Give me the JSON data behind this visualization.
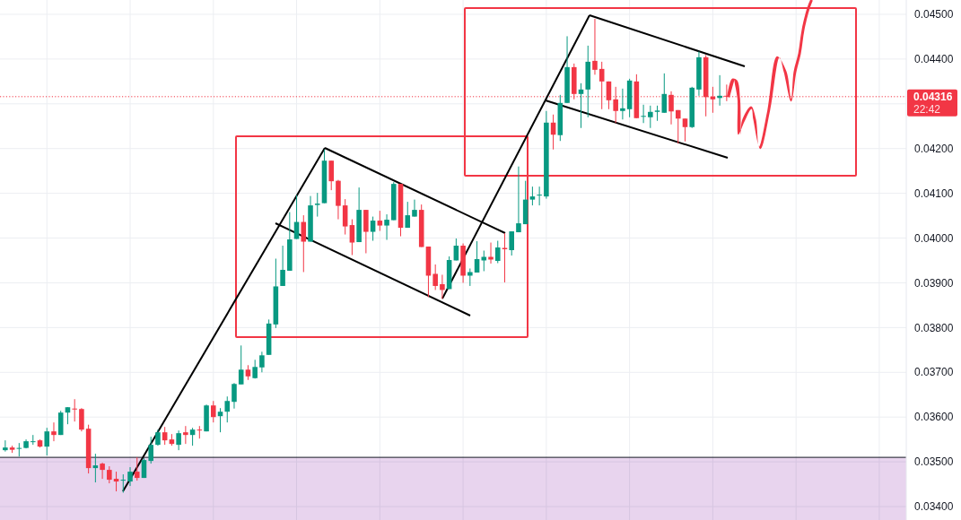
{
  "chart_data": {
    "type": "candlestick",
    "categories": [
      null,
      null,
      null,
      null,
      null,
      null,
      null,
      null,
      null,
      null,
      null,
      null,
      null,
      null,
      null,
      null,
      null,
      null,
      null,
      null,
      null,
      null,
      null,
      null,
      null,
      null,
      null,
      null,
      null,
      null,
      null,
      null,
      null,
      null,
      null,
      null,
      null,
      null,
      null,
      null,
      null,
      null,
      null,
      null,
      null,
      null,
      null,
      null,
      null,
      null,
      null,
      null,
      null,
      null,
      null,
      null,
      null,
      null,
      null,
      null,
      null,
      null,
      null,
      null,
      null,
      null,
      null,
      null,
      null,
      null,
      null,
      null,
      null,
      null,
      null,
      null,
      null,
      null,
      null,
      null,
      null,
      null,
      null,
      null,
      null,
      null,
      null,
      null,
      null,
      null,
      null,
      null,
      null,
      null,
      null,
      null,
      null,
      null,
      null,
      null,
      null,
      null,
      null,
      null,
      null,
      null,
      null,
      null,
      null,
      null,
      null,
      null,
      null,
      null,
      null,
      null,
      null,
      null,
      null,
      null,
      null,
      null,
      null,
      null,
      null,
      null,
      null,
      null,
      null,
      null
    ],
    "ohlc": [
      [
        0.03526,
        0.03548,
        0.03523,
        0.03532
      ],
      [
        0.03532,
        0.03536,
        0.0352,
        0.03527
      ],
      [
        0.03529,
        0.03542,
        0.03512,
        0.03531
      ],
      [
        0.03531,
        0.0355,
        0.0353,
        0.03546
      ],
      [
        0.03544,
        0.0356,
        0.03538,
        0.03546
      ],
      [
        0.03548,
        0.0355,
        0.03532,
        0.03534
      ],
      [
        0.03534,
        0.03576,
        0.03514,
        0.03568
      ],
      [
        0.03568,
        0.03588,
        0.03546,
        0.0356
      ],
      [
        0.0356,
        0.03614,
        0.0356,
        0.0361
      ],
      [
        0.0361,
        0.03622,
        0.03584,
        0.03622
      ],
      [
        0.03619,
        0.0364,
        0.0359,
        0.03618
      ],
      [
        0.03618,
        0.0362,
        0.03568,
        0.03572
      ],
      [
        0.03574,
        0.03583,
        0.03474,
        0.03486
      ],
      [
        0.03486,
        0.03518,
        0.03454,
        0.03492
      ],
      [
        0.03496,
        0.03498,
        0.03462,
        0.03482
      ],
      [
        0.03482,
        0.0349,
        0.03452,
        0.0346
      ],
      [
        0.03462,
        0.03478,
        0.03434,
        0.03456
      ],
      [
        0.03458,
        0.03472,
        0.03431,
        0.0346
      ],
      [
        0.03456,
        0.03488,
        0.03446,
        0.03478
      ],
      [
        0.03478,
        0.0351,
        0.03458,
        0.03464
      ],
      [
        0.03464,
        0.03508,
        0.03464,
        0.03504
      ],
      [
        0.03502,
        0.03556,
        0.03496,
        0.03538
      ],
      [
        0.03538,
        0.03572,
        0.03536,
        0.03566
      ],
      [
        0.03566,
        0.03578,
        0.03538,
        0.03548
      ],
      [
        0.0355,
        0.03562,
        0.03536,
        0.0354
      ],
      [
        0.03538,
        0.0357,
        0.03526,
        0.03564
      ],
      [
        0.03566,
        0.0358,
        0.0354,
        0.0356
      ],
      [
        0.0356,
        0.03576,
        0.03536,
        0.03572
      ],
      [
        0.03572,
        0.0358,
        0.03552,
        0.0357
      ],
      [
        0.03568,
        0.03628,
        0.03568,
        0.03626
      ],
      [
        0.03626,
        0.03636,
        0.03588,
        0.036
      ],
      [
        0.03602,
        0.0362,
        0.03566,
        0.03612
      ],
      [
        0.03612,
        0.03646,
        0.03588,
        0.03636
      ],
      [
        0.03634,
        0.03676,
        0.03619,
        0.03674
      ],
      [
        0.03673,
        0.0376,
        0.03673,
        0.03706
      ],
      [
        0.03706,
        0.03716,
        0.03683,
        0.03691
      ],
      [
        0.03687,
        0.03728,
        0.03686,
        0.03712
      ],
      [
        0.03711,
        0.03746,
        0.037,
        0.03738
      ],
      [
        0.03739,
        0.03818,
        0.03739,
        0.03809
      ],
      [
        0.03807,
        0.03954,
        0.03799,
        0.03892
      ],
      [
        0.03893,
        0.03983,
        0.03893,
        0.03929
      ],
      [
        0.03927,
        0.04058,
        0.03927,
        0.03997
      ],
      [
        0.03998,
        0.04096,
        0.03998,
        0.04036
      ],
      [
        0.04036,
        0.04051,
        0.03924,
        0.03992
      ],
      [
        0.03992,
        0.04094,
        0.03992,
        0.04073
      ],
      [
        0.04074,
        0.04101,
        0.04048,
        0.04077
      ],
      [
        0.04078,
        0.04198,
        0.04078,
        0.04173
      ],
      [
        0.04173,
        0.04173,
        0.04107,
        0.04127
      ],
      [
        0.04128,
        0.0413,
        0.04042,
        0.04072
      ],
      [
        0.04073,
        0.04087,
        0.04008,
        0.04026
      ],
      [
        0.04029,
        0.04042,
        0.03962,
        0.0399
      ],
      [
        0.03991,
        0.04113,
        0.03991,
        0.04063
      ],
      [
        0.04063,
        0.04063,
        0.03966,
        0.04014
      ],
      [
        0.04014,
        0.04048,
        0.03994,
        0.04039
      ],
      [
        0.04039,
        0.04061,
        0.04016,
        0.04028
      ],
      [
        0.04028,
        0.04053,
        0.03996,
        0.04041
      ],
      [
        0.0404,
        0.04125,
        0.0404,
        0.04121
      ],
      [
        0.04121,
        0.04121,
        0.04004,
        0.04023
      ],
      [
        0.04023,
        0.04081,
        0.04023,
        0.04051
      ],
      [
        0.04048,
        0.04086,
        0.04048,
        0.04063
      ],
      [
        0.04063,
        0.04075,
        0.0398,
        0.0398
      ],
      [
        0.03981,
        0.03981,
        0.03868,
        0.03916
      ],
      [
        0.0392,
        0.03941,
        0.03884,
        0.03893
      ],
      [
        0.03897,
        0.03918,
        0.03864,
        0.03884
      ],
      [
        0.03886,
        0.03959,
        0.03886,
        0.03951
      ],
      [
        0.0395,
        0.03999,
        0.0395,
        0.03983
      ],
      [
        0.03983,
        0.03988,
        0.039,
        0.03916
      ],
      [
        0.03916,
        0.03932,
        0.03893,
        0.03924
      ],
      [
        0.03923,
        0.03993,
        0.03923,
        0.03953
      ],
      [
        0.0395,
        0.03972,
        0.03926,
        0.03958
      ],
      [
        0.03958,
        0.0399,
        0.03943,
        0.03952
      ],
      [
        0.03949,
        0.03994,
        0.03944,
        0.03979
      ],
      [
        0.03978,
        0.04011,
        0.03901,
        0.03975
      ],
      [
        0.03973,
        0.04015,
        0.03961,
        0.04015
      ],
      [
        0.04013,
        0.0416,
        0.04013,
        0.04033
      ],
      [
        0.04031,
        0.04128,
        0.04031,
        0.04086
      ],
      [
        0.04086,
        0.04115,
        0.04073,
        0.04093
      ],
      [
        0.04095,
        0.04115,
        0.04073,
        0.04097
      ],
      [
        0.04093,
        0.04284,
        0.04088,
        0.04258
      ],
      [
        0.04258,
        0.04276,
        0.04198,
        0.04231
      ],
      [
        0.0423,
        0.0432,
        0.04217,
        0.04302
      ],
      [
        0.04302,
        0.04451,
        0.04302,
        0.04382
      ],
      [
        0.04382,
        0.0439,
        0.0431,
        0.04322
      ],
      [
        0.04322,
        0.04346,
        0.04246,
        0.04332
      ],
      [
        0.04332,
        0.0443,
        0.0427,
        0.04394
      ],
      [
        0.04396,
        0.0449,
        0.04365,
        0.04376
      ],
      [
        0.04378,
        0.04394,
        0.04288,
        0.0435
      ],
      [
        0.0435,
        0.0435,
        0.04288,
        0.04308
      ],
      [
        0.0431,
        0.04338,
        0.04257,
        0.04284
      ],
      [
        0.04284,
        0.04334,
        0.04265,
        0.0429
      ],
      [
        0.04288,
        0.04356,
        0.0427,
        0.04352
      ],
      [
        0.0435,
        0.04366,
        0.04268,
        0.04268
      ],
      [
        0.04271,
        0.04298,
        0.04257,
        0.04273
      ],
      [
        0.0427,
        0.04296,
        0.04246,
        0.04282
      ],
      [
        0.04282,
        0.04296,
        0.04262,
        0.04285
      ],
      [
        0.0428,
        0.04368,
        0.0428,
        0.04322
      ],
      [
        0.0432,
        0.04328,
        0.04254,
        0.04283
      ],
      [
        0.04286,
        0.04286,
        0.04211,
        0.04267
      ],
      [
        0.04267,
        0.04267,
        0.04216,
        0.04248
      ],
      [
        0.04248,
        0.04338,
        0.04246,
        0.04336
      ],
      [
        0.04332,
        0.04417,
        0.04318,
        0.04404
      ],
      [
        0.04404,
        0.04409,
        0.04272,
        0.04315
      ],
      [
        0.04316,
        0.04338,
        0.0428,
        0.0431
      ],
      [
        0.04313,
        0.04364,
        0.04296,
        0.04318
      ],
      [
        0.04318,
        0.04343,
        0.04306,
        0.04316
      ],
      null,
      null,
      null,
      null,
      null,
      null,
      null,
      null,
      null,
      null,
      null,
      null,
      null,
      null,
      null,
      null,
      null,
      null,
      null,
      null,
      null,
      null,
      null,
      null,
      null
    ],
    "colors": [
      "#089981",
      "#f23645",
      "#089981",
      "#089981",
      "#089981",
      "#f23645",
      "#089981",
      "#f23645",
      "#089981",
      "#089981",
      "#f23645",
      "#f23645",
      "#f23645",
      "#089981",
      "#f23645",
      "#f23645",
      "#f23645",
      "#089981",
      "#089981",
      "#f23645",
      "#089981",
      "#089981",
      "#089981",
      "#f23645",
      "#f23645",
      "#089981",
      "#f23645",
      "#089981",
      "#f23645",
      "#089981",
      "#f23645",
      "#089981",
      "#089981",
      "#089981",
      "#089981",
      "#f23645",
      "#089981",
      "#089981",
      "#089981",
      "#089981",
      "#089981",
      "#089981",
      "#089981",
      "#f23645",
      "#089981",
      "#089981",
      "#089981",
      "#f23645",
      "#f23645",
      "#f23645",
      "#f23645",
      "#089981",
      "#f23645",
      "#089981",
      "#f23645",
      "#089981",
      "#089981",
      "#f23645",
      "#089981",
      "#089981",
      "#f23645",
      "#f23645",
      "#f23645",
      "#f23645",
      "#089981",
      "#089981",
      "#f23645",
      "#089981",
      "#089981",
      "#089981",
      "#f23645",
      "#089981",
      "#f23645",
      "#089981",
      "#089981",
      "#089981",
      "#089981",
      "#089981",
      "#089981",
      "#f23645",
      "#089981",
      "#089981",
      "#f23645",
      "#089981",
      "#089981",
      "#f23645",
      "#f23645",
      "#f23645",
      "#f23645",
      "#089981",
      "#089981",
      "#f23645",
      "#089981",
      "#089981",
      "#089981",
      "#089981",
      "#f23645",
      "#f23645",
      "#f23645",
      "#089981",
      "#089981",
      "#f23645",
      "#f23645",
      "#089981",
      "#f23645",
      null,
      null,
      null,
      null,
      null,
      null,
      null,
      null,
      null,
      null,
      null,
      null,
      null,
      null,
      null,
      null,
      null,
      null,
      null,
      null,
      null,
      null,
      null,
      null,
      null
    ],
    "ylim": [
      0.0337,
      0.04532
    ],
    "yticks": [
      {
        "value": 0.034,
        "label": "0.03400"
      },
      {
        "value": 0.035,
        "label": "0.03500"
      },
      {
        "value": 0.036,
        "label": "0.03600"
      },
      {
        "value": 0.037,
        "label": "0.03700"
      },
      {
        "value": 0.038,
        "label": "0.03800"
      },
      {
        "value": 0.039,
        "label": "0.03900"
      },
      {
        "value": 0.04,
        "label": "0.04000"
      },
      {
        "value": 0.041,
        "label": "0.04100"
      },
      {
        "value": 0.042,
        "label": "0.04200"
      },
      {
        "value": 0.043,
        "label": null
      },
      {
        "value": 0.044,
        "label": "0.04400"
      },
      {
        "value": 0.045,
        "label": "0.04500"
      }
    ],
    "tick_labels": "y",
    "grid": true,
    "bands": [
      {
        "axis": "y",
        "from": 0.0337,
        "to": 0.0351,
        "color": "#e8d4ee"
      }
    ],
    "ref_lines": [
      {
        "axis": "y",
        "value": 0.0351,
        "color": "#131722",
        "line_style": "solid"
      },
      {
        "axis": "y",
        "value": 0.04316,
        "label": "0.04316",
        "color": "#f23645",
        "line_style": "dotted"
      }
    ],
    "annotations": [
      "22:42"
    ]
  }
}
